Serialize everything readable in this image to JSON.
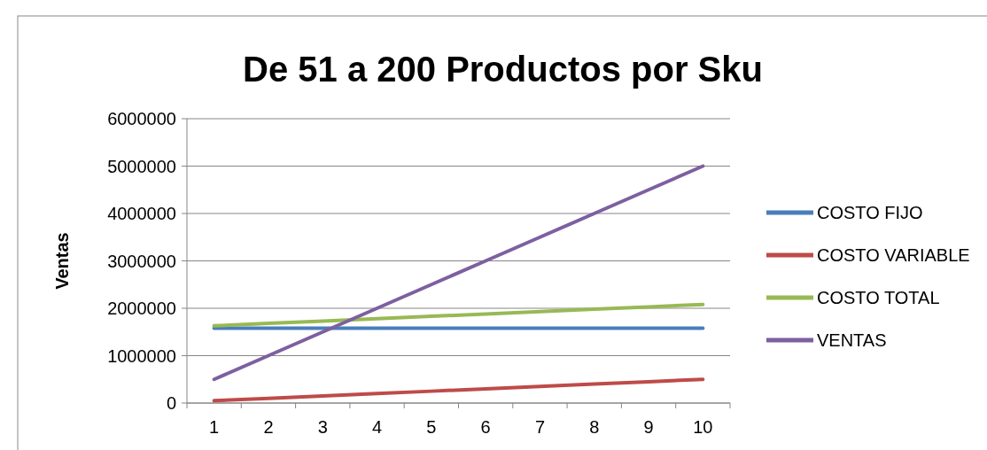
{
  "chart_data": {
    "type": "line",
    "title": "De 51 a 200 Productos por Sku",
    "ylabel": "Ventas",
    "categories": [
      "1",
      "2",
      "3",
      "4",
      "5",
      "6",
      "7",
      "8",
      "9",
      "10"
    ],
    "series": [
      {
        "name": "COSTO FIJO",
        "color": "#4a7ebb",
        "values": [
          1580000,
          1580000,
          1580000,
          1580000,
          1580000,
          1580000,
          1580000,
          1580000,
          1580000,
          1580000
        ]
      },
      {
        "name": "COSTO VARIABLE",
        "color": "#be4b48",
        "values": [
          50000,
          100000,
          150000,
          200000,
          250000,
          300000,
          350000,
          400000,
          450000,
          500000
        ]
      },
      {
        "name": "COSTO TOTAL",
        "color": "#98b954",
        "values": [
          1630000,
          1680000,
          1730000,
          1780000,
          1830000,
          1880000,
          1930000,
          1980000,
          2030000,
          2080000
        ]
      },
      {
        "name": "VENTAS",
        "color": "#7d60a0",
        "values": [
          500000,
          1000000,
          1500000,
          2000000,
          2500000,
          3000000,
          3500000,
          4000000,
          4500000,
          5000000
        ]
      }
    ],
    "ylim": [
      0,
      6000000
    ],
    "yticks": [
      0,
      1000000,
      2000000,
      3000000,
      4000000,
      5000000,
      6000000
    ],
    "grid": "y",
    "legend": "right",
    "marker": "none",
    "line_style": "solid"
  }
}
